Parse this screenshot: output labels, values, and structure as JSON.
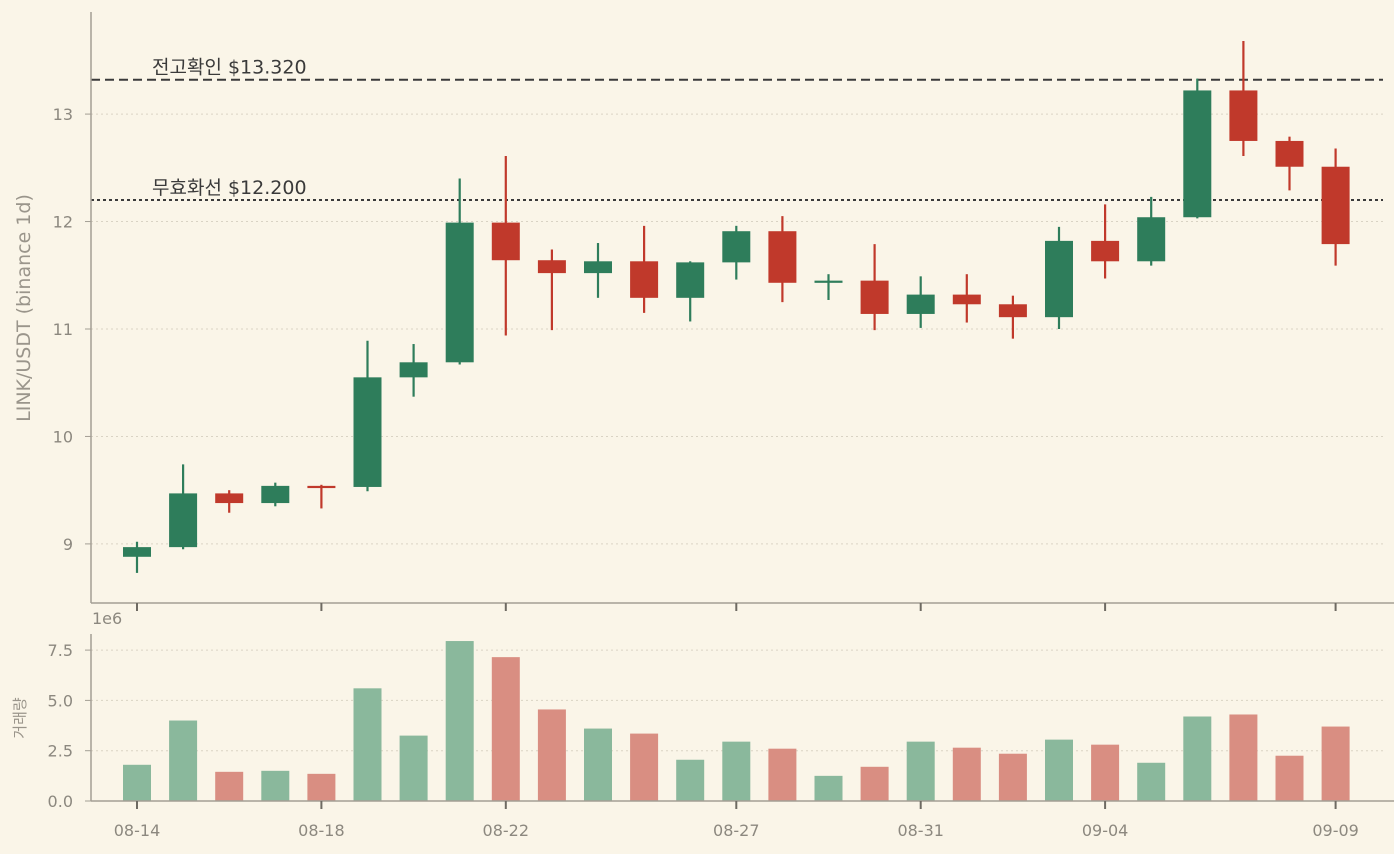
{
  "colors": {
    "background": "#faf5e8",
    "up": "#2e7d5b",
    "down": "#c0392b",
    "up_volume": "#8ab89c",
    "down_volume": "#d98e82",
    "axis": "#a39e94",
    "grid": "#d9d3c4",
    "text": "#8c887f",
    "annotation": "#3a3a3a"
  },
  "chart_data": {
    "type": "candlestick",
    "ylabel": "LINK/USDT (binance 1d)",
    "ylim": [
      8.45,
      13.95
    ],
    "yticks": [
      9,
      10,
      11,
      12,
      13
    ],
    "grid": true,
    "x": [
      "08-14",
      "08-15",
      "08-16",
      "08-17",
      "08-18",
      "08-19",
      "08-20",
      "08-21",
      "08-22",
      "08-23",
      "08-24",
      "08-25",
      "08-26",
      "08-27",
      "08-28",
      "08-29",
      "08-30",
      "08-31",
      "09-01",
      "09-02",
      "09-03",
      "09-04",
      "09-05",
      "09-06",
      "09-07",
      "09-08",
      "09-09"
    ],
    "xtick_labels": [
      "08-14",
      "08-18",
      "08-22",
      "08-27",
      "08-31",
      "09-04",
      "09-09"
    ],
    "candles": [
      {
        "o": 8.88,
        "h": 9.02,
        "l": 8.73,
        "c": 8.97
      },
      {
        "o": 8.97,
        "h": 9.74,
        "l": 8.95,
        "c": 9.47
      },
      {
        "o": 9.47,
        "h": 9.5,
        "l": 9.29,
        "c": 9.38
      },
      {
        "o": 9.38,
        "h": 9.57,
        "l": 9.35,
        "c": 9.54
      },
      {
        "o": 9.54,
        "h": 9.55,
        "l": 9.33,
        "c": 9.53
      },
      {
        "o": 9.53,
        "h": 10.89,
        "l": 9.49,
        "c": 10.55
      },
      {
        "o": 10.55,
        "h": 10.86,
        "l": 10.37,
        "c": 10.69
      },
      {
        "o": 10.69,
        "h": 12.4,
        "l": 10.67,
        "c": 11.99
      },
      {
        "o": 11.99,
        "h": 12.61,
        "l": 10.94,
        "c": 11.64
      },
      {
        "o": 11.64,
        "h": 11.74,
        "l": 10.99,
        "c": 11.52
      },
      {
        "o": 11.52,
        "h": 11.8,
        "l": 11.29,
        "c": 11.63
      },
      {
        "o": 11.63,
        "h": 11.96,
        "l": 11.15,
        "c": 11.29
      },
      {
        "o": 11.29,
        "h": 11.63,
        "l": 11.07,
        "c": 11.62
      },
      {
        "o": 11.62,
        "h": 11.96,
        "l": 11.46,
        "c": 11.91
      },
      {
        "o": 11.91,
        "h": 12.05,
        "l": 11.25,
        "c": 11.43
      },
      {
        "o": 11.43,
        "h": 11.51,
        "l": 11.27,
        "c": 11.45
      },
      {
        "o": 11.45,
        "h": 11.79,
        "l": 10.99,
        "c": 11.14
      },
      {
        "o": 11.14,
        "h": 11.49,
        "l": 11.01,
        "c": 11.32
      },
      {
        "o": 11.32,
        "h": 11.51,
        "l": 11.06,
        "c": 11.23
      },
      {
        "o": 11.23,
        "h": 11.31,
        "l": 10.91,
        "c": 11.11
      },
      {
        "o": 11.11,
        "h": 11.95,
        "l": 11.0,
        "c": 11.82
      },
      {
        "o": 11.82,
        "h": 12.16,
        "l": 11.47,
        "c": 11.63
      },
      {
        "o": 11.63,
        "h": 12.23,
        "l": 11.59,
        "c": 12.04
      },
      {
        "o": 12.04,
        "h": 13.33,
        "l": 12.03,
        "c": 13.22
      },
      {
        "o": 13.22,
        "h": 13.68,
        "l": 12.61,
        "c": 12.75
      },
      {
        "o": 12.75,
        "h": 12.79,
        "l": 12.29,
        "c": 12.51
      },
      {
        "o": 12.51,
        "h": 12.68,
        "l": 11.59,
        "c": 11.79
      }
    ],
    "reference_lines": [
      {
        "label": "전고확인 $13.320",
        "value": 13.32,
        "style": "dashed"
      },
      {
        "label": "무효화선 $12.200",
        "value": 12.2,
        "style": "dotted"
      }
    ],
    "volume": {
      "ylabel": "거래량",
      "offset_label": "1e6",
      "ylim": [
        0,
        8.3
      ],
      "yticks": [
        "0.0",
        "2.5",
        "5.0",
        "7.5"
      ],
      "values": [
        1.8,
        4.0,
        1.45,
        1.5,
        1.35,
        5.6,
        3.25,
        7.95,
        7.15,
        4.55,
        3.6,
        3.35,
        2.05,
        2.95,
        2.6,
        1.25,
        1.7,
        2.95,
        2.65,
        2.35,
        3.05,
        2.8,
        1.9,
        4.2,
        4.3,
        2.25,
        3.7
      ]
    }
  }
}
